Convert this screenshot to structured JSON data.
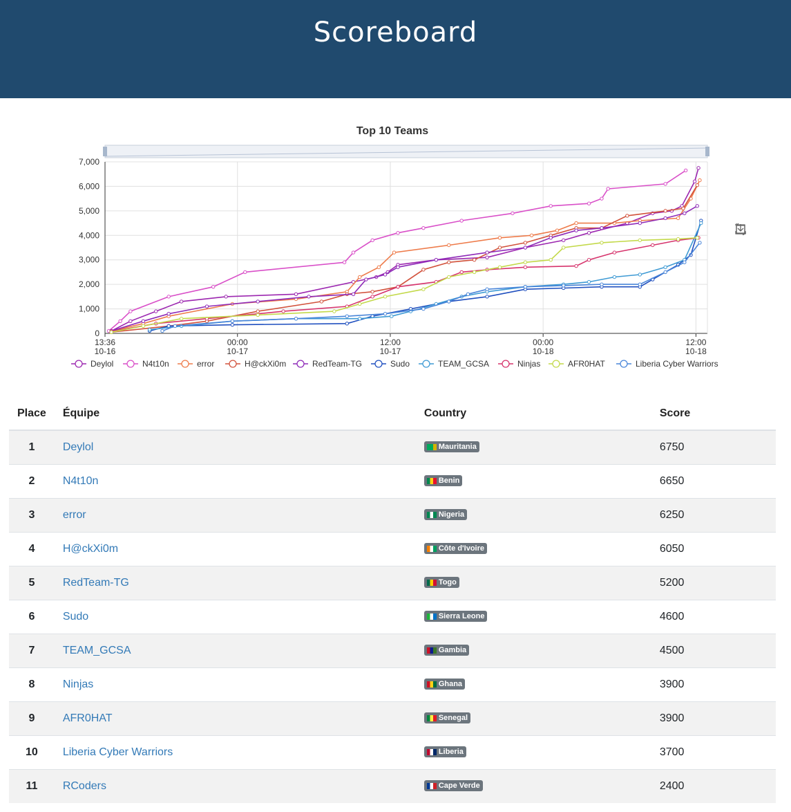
{
  "header": {
    "title": "Scoreboard"
  },
  "chart_data": {
    "type": "line",
    "title": "Top 10 Teams",
    "ylim": [
      0,
      7000
    ],
    "yticks": [
      "0",
      "1,000",
      "2,000",
      "3,000",
      "4,000",
      "5,000",
      "6,000",
      "7,000"
    ],
    "xticks": [
      {
        "t": 0,
        "l1": "13:36",
        "l2": "10-16"
      },
      {
        "t": 10.4,
        "l1": "00:00",
        "l2": "10-17"
      },
      {
        "t": 22.4,
        "l1": "12:00",
        "l2": "10-17"
      },
      {
        "t": 34.4,
        "l1": "00:00",
        "l2": "10-18"
      },
      {
        "t": 46.4,
        "l1": "12:00",
        "l2": "10-18"
      }
    ],
    "xunit": "hours since 10-16 13:36",
    "xlim": [
      0,
      47.3
    ],
    "series": [
      {
        "name": "Deylol",
        "color": "#9c27b0",
        "points": [
          [
            0.5,
            100
          ],
          [
            2,
            500
          ],
          [
            4,
            900
          ],
          [
            6,
            1300
          ],
          [
            9.5,
            1500
          ],
          [
            15,
            1600
          ],
          [
            19.5,
            2100
          ],
          [
            21.3,
            2300
          ],
          [
            22.2,
            2500
          ],
          [
            23,
            2800
          ],
          [
            26,
            3000
          ],
          [
            30,
            3100
          ],
          [
            33,
            3500
          ],
          [
            36,
            3800
          ],
          [
            38,
            4100
          ],
          [
            41,
            4500
          ],
          [
            43,
            4900
          ],
          [
            44.5,
            5000
          ],
          [
            45.3,
            5200
          ],
          [
            46.3,
            6200
          ],
          [
            46.6,
            6750
          ]
        ]
      },
      {
        "name": "N4t10n",
        "color": "#d94fc8",
        "points": [
          [
            0.3,
            100
          ],
          [
            1.2,
            500
          ],
          [
            2,
            900
          ],
          [
            5,
            1500
          ],
          [
            8.5,
            1900
          ],
          [
            11,
            2500
          ],
          [
            18.8,
            2900
          ],
          [
            19.5,
            3300
          ],
          [
            21,
            3800
          ],
          [
            23,
            4100
          ],
          [
            25,
            4300
          ],
          [
            28,
            4600
          ],
          [
            32,
            4900
          ],
          [
            35,
            5200
          ],
          [
            38,
            5300
          ],
          [
            39,
            5500
          ],
          [
            39.5,
            5900
          ],
          [
            44,
            6100
          ],
          [
            45.6,
            6650
          ]
        ]
      },
      {
        "name": "error",
        "color": "#ee7b4a",
        "points": [
          [
            0.5,
            100
          ],
          [
            3,
            400
          ],
          [
            5,
            700
          ],
          [
            10,
            1200
          ],
          [
            15,
            1400
          ],
          [
            19,
            1700
          ],
          [
            20,
            2300
          ],
          [
            21.5,
            2700
          ],
          [
            22.7,
            3300
          ],
          [
            27,
            3600
          ],
          [
            31,
            3900
          ],
          [
            33.5,
            4000
          ],
          [
            35.5,
            4200
          ],
          [
            37,
            4500
          ],
          [
            40,
            4500
          ],
          [
            42,
            4600
          ],
          [
            45,
            4700
          ],
          [
            46,
            5500
          ],
          [
            46.7,
            6250
          ]
        ]
      },
      {
        "name": "H@ckXi0m",
        "color": "#d2523c",
        "points": [
          [
            0.5,
            50
          ],
          [
            5,
            300
          ],
          [
            8,
            500
          ],
          [
            12,
            900
          ],
          [
            17,
            1300
          ],
          [
            19,
            1600
          ],
          [
            21,
            1700
          ],
          [
            23,
            1900
          ],
          [
            25,
            2600
          ],
          [
            27,
            2900
          ],
          [
            29,
            3000
          ],
          [
            31,
            3500
          ],
          [
            33,
            3700
          ],
          [
            35,
            4000
          ],
          [
            37,
            4300
          ],
          [
            39,
            4300
          ],
          [
            41,
            4800
          ],
          [
            44,
            5000
          ],
          [
            45.4,
            5100
          ],
          [
            46.5,
            6050
          ]
        ]
      },
      {
        "name": "RedTeam-TG",
        "color": "#8e2ab8",
        "points": [
          [
            0.5,
            100
          ],
          [
            3,
            500
          ],
          [
            5,
            800
          ],
          [
            8,
            1100
          ],
          [
            12,
            1300
          ],
          [
            16,
            1500
          ],
          [
            19.5,
            1600
          ],
          [
            20.5,
            2200
          ],
          [
            22,
            2400
          ],
          [
            23,
            2700
          ],
          [
            26,
            3000
          ],
          [
            30,
            3300
          ],
          [
            33,
            3500
          ],
          [
            35,
            3900
          ],
          [
            37,
            4200
          ],
          [
            39,
            4300
          ],
          [
            42,
            4500
          ],
          [
            44,
            4700
          ],
          [
            45.5,
            4900
          ],
          [
            46.5,
            5200
          ]
        ]
      },
      {
        "name": "Sudo",
        "color": "#1f4fbf",
        "points": [
          [
            3.5,
            100
          ],
          [
            5,
            300
          ],
          [
            10,
            350
          ],
          [
            19,
            400
          ],
          [
            21,
            700
          ],
          [
            24,
            1000
          ],
          [
            27,
            1300
          ],
          [
            30,
            1500
          ],
          [
            33,
            1800
          ],
          [
            36,
            1850
          ],
          [
            39,
            1900
          ],
          [
            42,
            1900
          ],
          [
            43,
            2200
          ],
          [
            45,
            2800
          ],
          [
            46,
            3200
          ],
          [
            46.8,
            4600
          ]
        ]
      },
      {
        "name": "TEAM_GCSA",
        "color": "#3e9ad4",
        "points": [
          [
            3.5,
            150
          ],
          [
            6,
            300
          ],
          [
            10,
            500
          ],
          [
            15,
            600
          ],
          [
            20,
            600
          ],
          [
            22.5,
            700
          ],
          [
            24,
            900
          ],
          [
            26,
            1200
          ],
          [
            28,
            1500
          ],
          [
            30,
            1700
          ],
          [
            33,
            1900
          ],
          [
            36,
            2000
          ],
          [
            38,
            2100
          ],
          [
            40,
            2300
          ],
          [
            42,
            2400
          ],
          [
            44,
            2700
          ],
          [
            45.5,
            3000
          ],
          [
            46.8,
            4500
          ]
        ]
      },
      {
        "name": "Ninjas",
        "color": "#d6336c",
        "points": [
          [
            0.5,
            80
          ],
          [
            4,
            400
          ],
          [
            8,
            600
          ],
          [
            14,
            900
          ],
          [
            19,
            1100
          ],
          [
            21,
            1500
          ],
          [
            23,
            1900
          ],
          [
            26,
            2100
          ],
          [
            28,
            2500
          ],
          [
            30,
            2600
          ],
          [
            33,
            2700
          ],
          [
            37,
            2750
          ],
          [
            38,
            3000
          ],
          [
            40,
            3300
          ],
          [
            43,
            3600
          ],
          [
            45,
            3800
          ],
          [
            46.6,
            3900
          ]
        ]
      },
      {
        "name": "AFR0HAT",
        "color": "#c3d94a",
        "points": [
          [
            0.5,
            50
          ],
          [
            3,
            300
          ],
          [
            6,
            600
          ],
          [
            12,
            750
          ],
          [
            18,
            900
          ],
          [
            20,
            1200
          ],
          [
            22,
            1500
          ],
          [
            25,
            1800
          ],
          [
            27,
            2300
          ],
          [
            29,
            2500
          ],
          [
            31,
            2700
          ],
          [
            33,
            2900
          ],
          [
            35,
            3000
          ],
          [
            36,
            3500
          ],
          [
            39,
            3700
          ],
          [
            42,
            3800
          ],
          [
            45,
            3850
          ],
          [
            46.5,
            3900
          ]
        ]
      },
      {
        "name": "Liberia Cyber Warriors",
        "color": "#4a86d9",
        "points": [
          [
            4.5,
            100
          ],
          [
            5.5,
            300
          ],
          [
            10,
            500
          ],
          [
            15,
            600
          ],
          [
            19,
            700
          ],
          [
            22,
            800
          ],
          [
            25,
            1000
          ],
          [
            27,
            1300
          ],
          [
            28.5,
            1600
          ],
          [
            30,
            1800
          ],
          [
            33,
            1900
          ],
          [
            36,
            1950
          ],
          [
            39,
            2000
          ],
          [
            42,
            2000
          ],
          [
            44,
            2500
          ],
          [
            45.5,
            2900
          ],
          [
            46.7,
            3700
          ]
        ]
      }
    ]
  },
  "table": {
    "headers": {
      "place": "Place",
      "team": "Équipe",
      "country": "Country",
      "score": "Score"
    },
    "rows": [
      {
        "place": "1",
        "team": "Deylol",
        "country": "Mauritania",
        "flag": [
          "#00a95c",
          "#00a95c",
          "#d4b200"
        ],
        "score": "6750"
      },
      {
        "place": "2",
        "team": "N4t10n",
        "country": "Benin",
        "flag": [
          "#008751",
          "#fcd116",
          "#e8112d"
        ],
        "score": "6650"
      },
      {
        "place": "3",
        "team": "error",
        "country": "Nigeria",
        "flag": [
          "#008751",
          "#ffffff",
          "#008751"
        ],
        "score": "6250"
      },
      {
        "place": "4",
        "team": "H@ckXi0m",
        "country": "Côte d'Ivoire",
        "flag": [
          "#f77f00",
          "#ffffff",
          "#009e60"
        ],
        "score": "6050"
      },
      {
        "place": "5",
        "team": "RedTeam-TG",
        "country": "Togo",
        "flag": [
          "#006a4e",
          "#ffce00",
          "#d21034"
        ],
        "score": "5200"
      },
      {
        "place": "6",
        "team": "Sudo",
        "country": "Sierra Leone",
        "flag": [
          "#1eb53a",
          "#ffffff",
          "#0072c6"
        ],
        "score": "4600"
      },
      {
        "place": "7",
        "team": "TEAM_GCSA",
        "country": "Gambia",
        "flag": [
          "#ce1126",
          "#0c1c8c",
          "#3a7728"
        ],
        "score": "4500"
      },
      {
        "place": "8",
        "team": "Ninjas",
        "country": "Ghana",
        "flag": [
          "#ce1126",
          "#fcd116",
          "#006b3f"
        ],
        "score": "3900"
      },
      {
        "place": "9",
        "team": "AFR0HAT",
        "country": "Senegal",
        "flag": [
          "#00853f",
          "#fdef42",
          "#e31b23"
        ],
        "score": "3900"
      },
      {
        "place": "10",
        "team": "Liberia Cyber Warriors",
        "country": "Liberia",
        "flag": [
          "#bf0a30",
          "#ffffff",
          "#002868"
        ],
        "score": "3700"
      },
      {
        "place": "11",
        "team": "RCoders",
        "country": "Cape Verde",
        "flag": [
          "#003893",
          "#ffffff",
          "#cf2027"
        ],
        "score": "2400"
      }
    ]
  }
}
